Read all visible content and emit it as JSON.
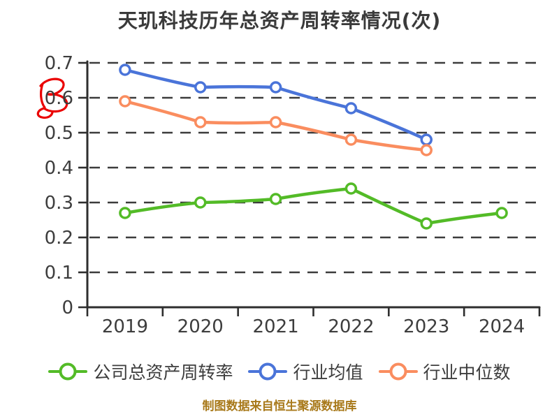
{
  "title": "天玑科技历年总资产周转率情况(次)",
  "footer": {
    "text": "制图数据来自恒生聚源数据库",
    "color": "#a8791a"
  },
  "watermark": {
    "description": "red hand-drawn R scribble beside y-axis",
    "color": "#ea0000"
  },
  "colors": {
    "text": "#3d3d3d",
    "axis": "#2e2e2e",
    "background": "#ffffff"
  },
  "chart_data": {
    "type": "line",
    "title": "天玑科技历年总资产周转率情况(次)",
    "style": "hand-drawn-xkcd",
    "categories": [
      "2019",
      "2020",
      "2021",
      "2022",
      "2023",
      "2024"
    ],
    "series": [
      {
        "name": "公司总资产周转率",
        "color": "#53bb27",
        "values": [
          0.27,
          0.3,
          0.31,
          0.34,
          0.24,
          0.27
        ]
      },
      {
        "name": "行业均值",
        "color": "#4a74d9",
        "values": [
          0.68,
          0.63,
          0.63,
          0.57,
          0.48,
          null
        ]
      },
      {
        "name": "行业中位数",
        "color": "#fa8d5f",
        "values": [
          0.59,
          0.53,
          0.53,
          0.48,
          0.45,
          null
        ]
      }
    ],
    "xlabel": "",
    "ylabel": "",
    "ylim": [
      0,
      0.7
    ],
    "yticks": [
      0,
      0.1,
      0.2,
      0.3,
      0.4,
      0.5,
      0.6,
      0.7
    ],
    "grid": true,
    "gridline_style": "dashed",
    "legend_position": "bottom",
    "marker": "open-circle-white-fill"
  }
}
